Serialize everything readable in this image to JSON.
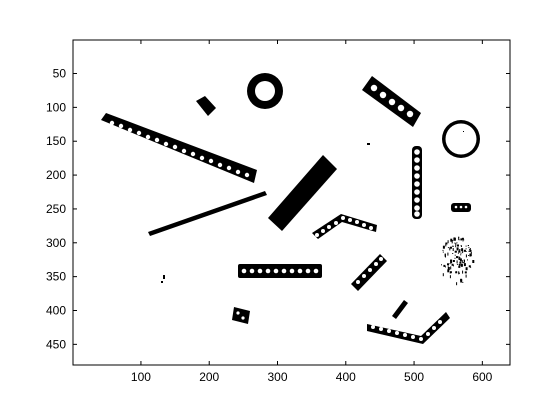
{
  "figure": {
    "background_color": "#ffffff",
    "axes_color": "#ffffff",
    "foreground_color": "#000000"
  },
  "axes": {
    "x_ticks": [
      "100",
      "200",
      "300",
      "400",
      "500",
      "600"
    ],
    "y_ticks": [
      "50",
      "100",
      "150",
      "200",
      "250",
      "300",
      "350",
      "400",
      "450"
    ],
    "x_tick_values": [
      100,
      200,
      300,
      400,
      500,
      600
    ],
    "y_tick_values": [
      50,
      100,
      150,
      200,
      250,
      300,
      350,
      400,
      450
    ],
    "x_range": [
      0.5,
      640.5
    ],
    "y_range": [
      0.5,
      480.5
    ],
    "y_direction": "reversed",
    "grid": false
  },
  "image_content": {
    "description_type": "binary-image",
    "objects": [
      {
        "id": "long-diagonal-chain",
        "kind": "beaded-bar"
      },
      {
        "id": "ring-top",
        "kind": "ring"
      },
      {
        "id": "small-block-top",
        "kind": "block"
      },
      {
        "id": "perforated-plate-top-right",
        "kind": "perforated-bar"
      },
      {
        "id": "ring-right",
        "kind": "ring"
      },
      {
        "id": "thin-rod",
        "kind": "rod"
      },
      {
        "id": "thick-bar-center",
        "kind": "bar"
      },
      {
        "id": "bent-perforated-bar",
        "kind": "perforated-bar"
      },
      {
        "id": "vertical-perforated-bar",
        "kind": "perforated-bar"
      },
      {
        "id": "small-block-right",
        "kind": "block"
      },
      {
        "id": "speckle-cluster",
        "kind": "noise"
      },
      {
        "id": "horizontal-chain-bottom",
        "kind": "beaded-bar"
      },
      {
        "id": "diagonal-chain-small",
        "kind": "beaded-bar"
      },
      {
        "id": "small-square-bottom",
        "kind": "block"
      },
      {
        "id": "tiny-slash",
        "kind": "rod"
      },
      {
        "id": "angled-perforated-bar-bottom",
        "kind": "perforated-bar"
      }
    ]
  }
}
